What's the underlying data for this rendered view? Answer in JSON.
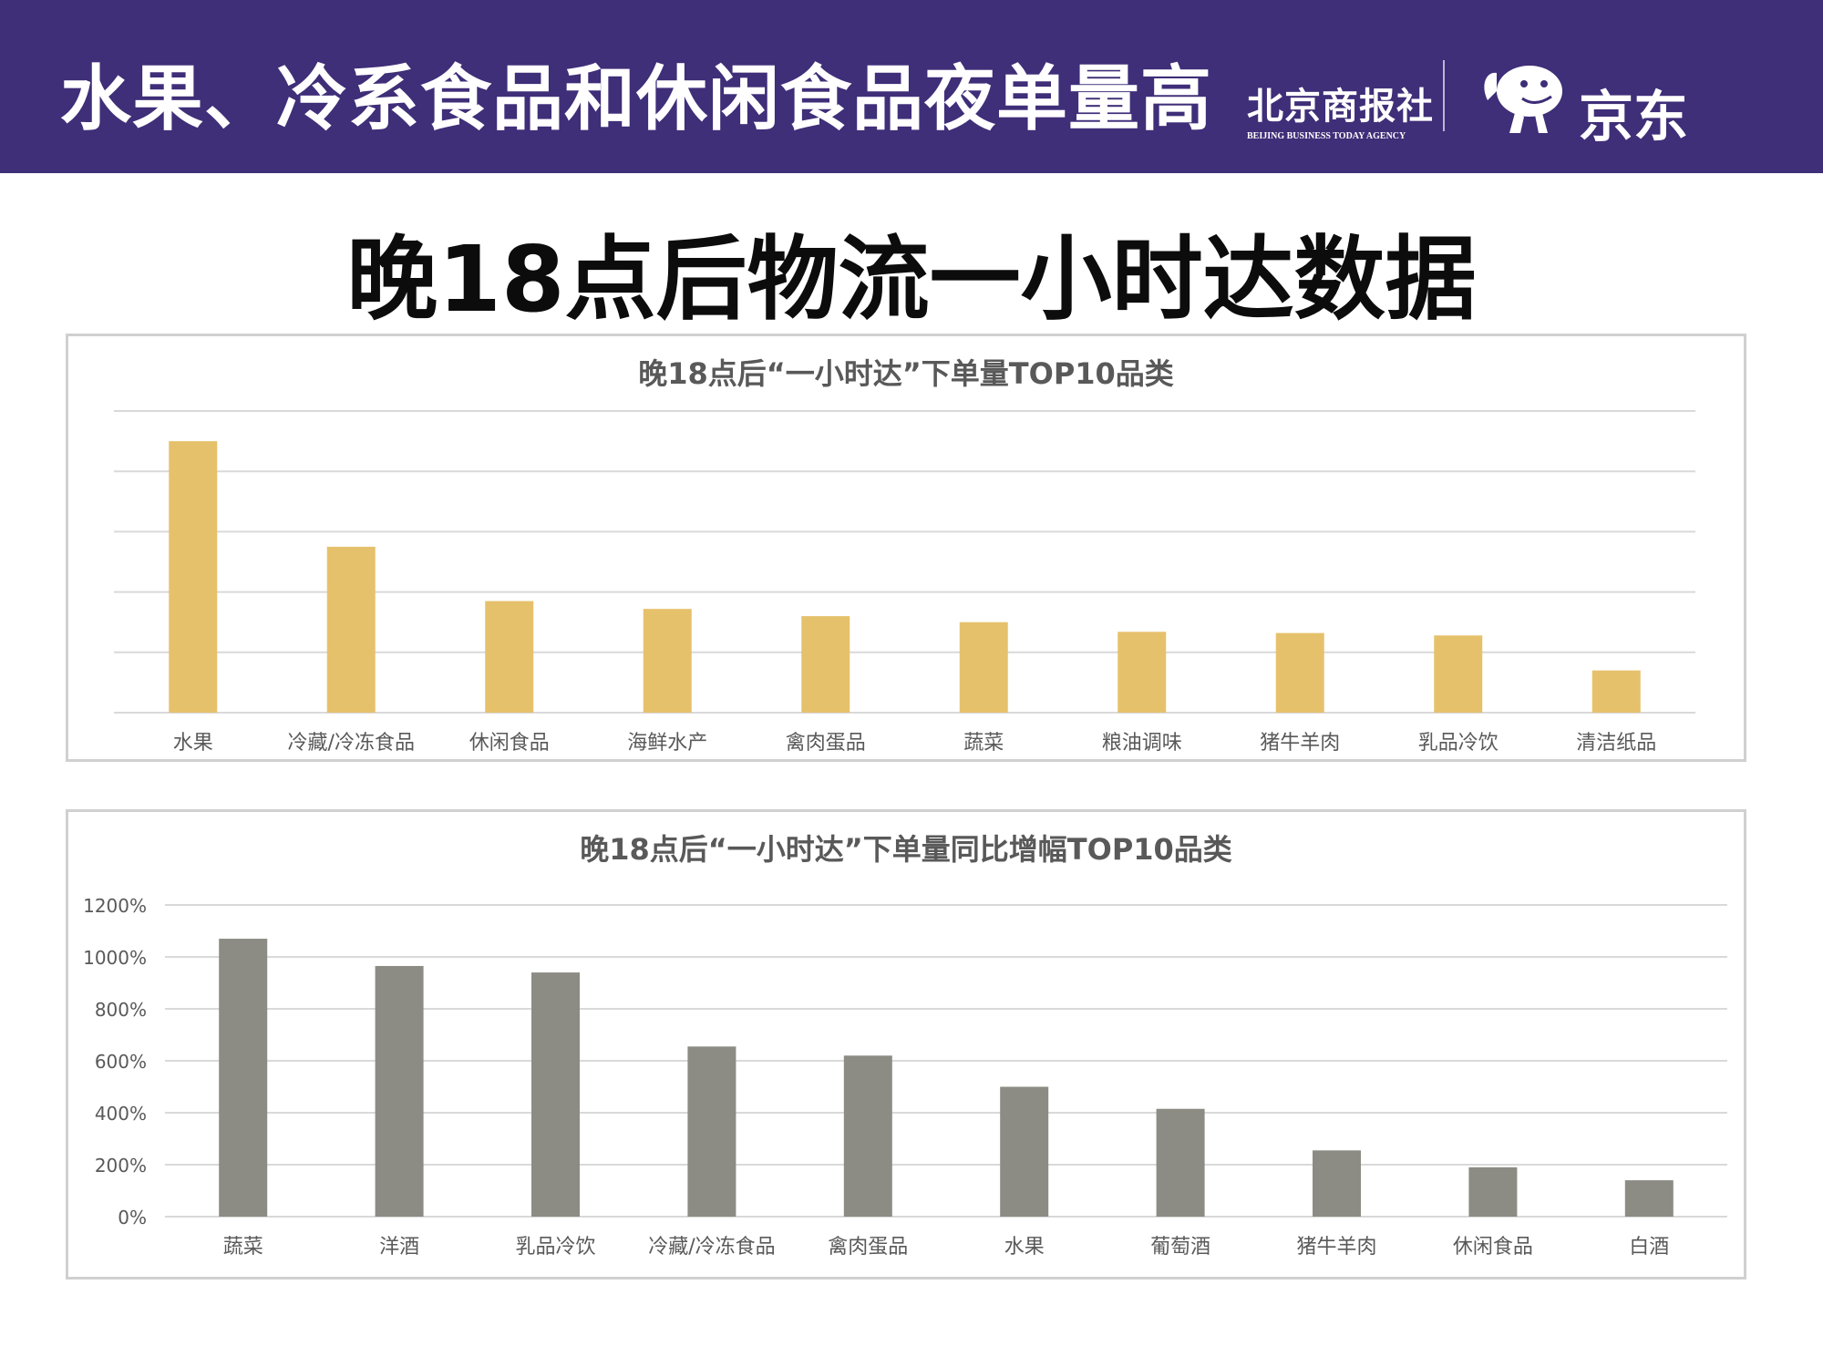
{
  "header": {
    "title": "水果、冷系食品和休闲食品夜单量高",
    "brand_bjb": "北京商报社",
    "brand_bjb_en": "BEIJING BUSINESS TODAY AGENCY",
    "brand_jd": "京东",
    "jd_logo_icon": "jd-dog-icon"
  },
  "main_title": "晚18点后物流一小时达数据",
  "colors": {
    "header_bg": "#3f2e78",
    "bar_gold": "#e6c16c",
    "bar_gray": "#8c8c84"
  },
  "chart_data": [
    {
      "type": "bar",
      "title": "晚18点后“一小时达”下单量TOP10品类",
      "xlabel": "",
      "ylabel": "",
      "y_tick_labels_shown": false,
      "ylim": [
        0,
        5
      ],
      "grid": true,
      "categories": [
        "水果",
        "冷藏/冷冻食品",
        "休闲食品",
        "海鲜水产",
        "禽肉蛋品",
        "蔬菜",
        "粮油调味",
        "猪牛羊肉",
        "乳品冷饮",
        "清洁纸品"
      ],
      "values": [
        4.5,
        2.75,
        1.85,
        1.72,
        1.6,
        1.5,
        1.34,
        1.32,
        1.28,
        0.7
      ],
      "color": "#e6c16c"
    },
    {
      "type": "bar",
      "title": "晚18点后“一小时达”下单量同比增幅TOP10品类",
      "xlabel": "",
      "ylabel": "",
      "ylim": [
        0,
        1200
      ],
      "yticks": [
        0,
        200,
        400,
        600,
        800,
        1000,
        1200
      ],
      "ytick_labels": [
        "0%",
        "200%",
        "400%",
        "600%",
        "800%",
        "1000%",
        "1200%"
      ],
      "grid": true,
      "categories": [
        "蔬菜",
        "洋酒",
        "乳品冷饮",
        "冷藏/冷冻食品",
        "禽肉蛋品",
        "水果",
        "葡萄酒",
        "猪牛羊肉",
        "休闲食品",
        "白酒"
      ],
      "values": [
        1070,
        965,
        940,
        655,
        620,
        500,
        415,
        255,
        190,
        140
      ],
      "color": "#8c8c84"
    }
  ]
}
